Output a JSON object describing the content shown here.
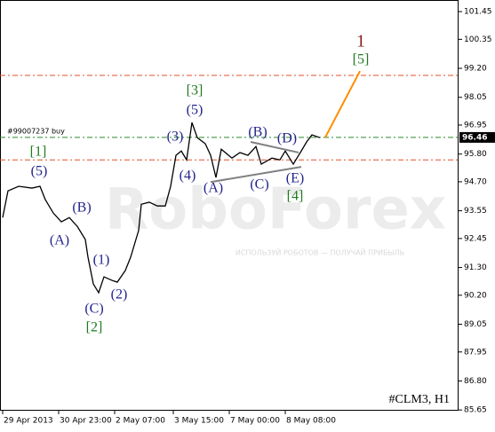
{
  "chart_data": {
    "type": "line",
    "symbol": "#CLM3, H1",
    "watermark": [
      "RoboForex",
      "ИСПОЛЬЗУЙ РОБОТОВ — ПОЛУЧАЙ ПРИБЫЛЬ"
    ],
    "x": [
      1,
      3,
      7,
      12,
      15,
      17,
      20,
      23,
      26,
      29,
      32,
      33,
      35,
      37,
      39,
      42,
      44,
      47,
      49,
      52,
      53,
      56,
      59,
      62,
      64,
      66,
      68,
      70,
      72,
      74,
      77,
      79,
      81,
      83,
      87,
      90,
      93,
      96,
      98,
      102,
      105,
      107,
      110,
      113,
      115,
      117,
      120
    ],
    "series": [
      {
        "color": "#000000",
        "values": [
          93.28,
          94.34,
          94.52,
          94.45,
          94.52,
          93.99,
          93.46,
          93.11,
          93.28,
          92.93,
          92.41,
          91.71,
          90.65,
          90.3,
          90.93,
          90.79,
          90.72,
          91.18,
          91.71,
          92.77,
          93.81,
          93.89,
          93.74,
          93.74,
          94.52,
          95.75,
          95.92,
          95.57,
          97.05,
          96.45,
          96.21,
          95.75,
          94.87,
          95.99,
          95.64,
          95.86,
          95.75,
          96.1,
          95.4,
          95.64,
          95.57,
          95.92,
          95.4,
          95.92,
          96.28,
          96.56,
          96.45
        ]
      }
    ],
    "xlim": [
      0,
      172
    ],
    "ylim": [
      85.62,
      101.91
    ],
    "xticks": [
      {
        "value": 1,
        "label": "29 Apr 2013"
      },
      {
        "value": 22,
        "label": "30 Apr 23:00"
      },
      {
        "value": 43,
        "label": "2 May 07:00"
      },
      {
        "value": 65,
        "label": "3 May 15:00"
      },
      {
        "value": 86,
        "label": "7 May 00:00"
      },
      {
        "value": 107,
        "label": "8 May 08:00"
      }
    ],
    "yticks": [
      101.45,
      100.35,
      {
        "value": 99.2,
        "label": "99.20"
      },
      98.05,
      96.95,
      {
        "value": 95.8,
        "label": "95.80"
      },
      {
        "value": 94.7,
        "label": "94.70"
      },
      93.55,
      92.45,
      {
        "value": 91.3,
        "label": "91.30"
      },
      {
        "value": 90.2,
        "label": "90.20"
      },
      89.05,
      87.95,
      {
        "value": 86.8,
        "label": "86.80"
      },
      85.65
    ],
    "levels": [
      {
        "value": 96.46,
        "color": "#2a8a2a",
        "label": "#99007237 buy"
      },
      {
        "value": 98.92,
        "color": "#e0502a"
      },
      {
        "value": 95.57,
        "color": "#e0502a"
      }
    ],
    "trend_lines": [
      {
        "color": "#ff8c00",
        "x": [
          122,
          135
        ],
        "y": [
          96.46,
          99.09
        ]
      },
      {
        "color": "#808080",
        "x": [
          79,
          113
        ],
        "y": [
          94.69,
          95.29
        ]
      },
      {
        "color": "#808080",
        "x": [
          94,
          112
        ],
        "y": [
          96.28,
          95.86
        ]
      }
    ],
    "wave_labels": [
      {
        "text": "1",
        "color": "#8b1a1a"
      },
      {
        "text": "[5]",
        "color": "#1e7a1e"
      },
      {
        "text": "[3]",
        "color": "#1e7a1e"
      },
      {
        "text": "(5)",
        "color": "#23238c"
      },
      {
        "text": "(3)",
        "color": "#23238c"
      },
      {
        "text": "(4)",
        "color": "#23238c"
      },
      {
        "text": "(B)",
        "color": "#23238c"
      },
      {
        "text": "(D)",
        "color": "#23238c"
      },
      {
        "text": "(A)",
        "color": "#23238c"
      },
      {
        "text": "(C)",
        "color": "#23238c"
      },
      {
        "text": "(E)",
        "color": "#23238c"
      },
      {
        "text": "[4]",
        "color": "#1e7a1e"
      },
      {
        "text": "[1]",
        "color": "#1e7a1e"
      },
      {
        "text": "(5)",
        "color": "#23238c"
      },
      {
        "text": "(B)",
        "color": "#23238c"
      },
      {
        "text": "(A)",
        "color": "#23238c"
      },
      {
        "text": "(1)",
        "color": "#23238c"
      },
      {
        "text": "(2)",
        "color": "#23238c"
      },
      {
        "text": "(C)",
        "color": "#23238c"
      },
      {
        "text": "[2]",
        "color": "#1e7a1e"
      }
    ]
  }
}
